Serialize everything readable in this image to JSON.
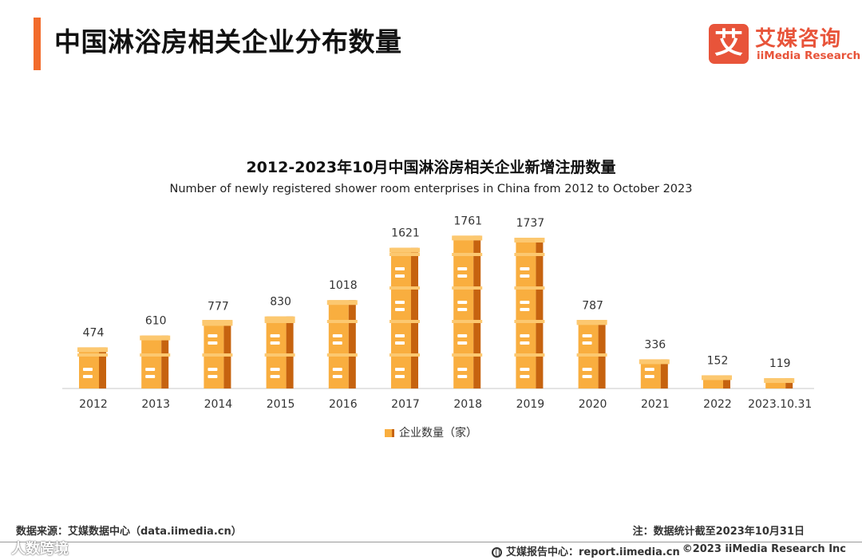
{
  "header": {
    "title": "中国淋浴房相关企业分布数量",
    "logo_mark": "艾",
    "logo_cn": "艾媒咨询",
    "logo_en": "iiMedia Research"
  },
  "colors": {
    "accent": "#f26b2b",
    "brand_red": "#e8543a",
    "bar_face": "#f9ae3f",
    "bar_top": "#fcc870",
    "bar_side": "#c6630f",
    "axis": "#c9c9c9"
  },
  "icons": {
    "report_center": "globe-icon"
  },
  "chart_data": {
    "type": "bar",
    "title": "2012-2023年10月中国淋浴房相关企业新增注册数量",
    "subtitle": "Number of newly registered shower room enterprises in China from 2012 to October 2023",
    "categories": [
      "2012",
      "2013",
      "2014",
      "2015",
      "2016",
      "2017",
      "2018",
      "2019",
      "2020",
      "2021",
      "2022",
      "2023.10.31"
    ],
    "series": [
      {
        "name": "企业数量（家）",
        "values": [
          474,
          610,
          777,
          830,
          1018,
          1621,
          1761,
          1737,
          787,
          336,
          152,
          119
        ]
      }
    ],
    "xlabel": "",
    "ylabel": "",
    "ylim": [
      0,
      2000
    ],
    "grid": false,
    "legend_position": "bottom-center"
  },
  "footer": {
    "source": "数据来源：艾媒数据中心（data.iimedia.cn）",
    "note": "注：数据统计截至2023年10月31日",
    "report_center": "艾媒报告中心：report.iimedia.cn",
    "copyright": "©2023  iiMedia Research  Inc",
    "watermark": "人数跨境"
  }
}
